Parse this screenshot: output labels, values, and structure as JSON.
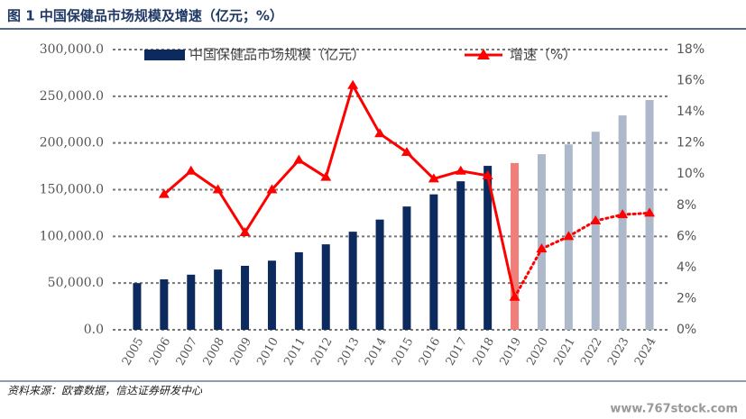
{
  "chart_data": {
    "type": "bar_line",
    "title": "图 1 中国保健品市场规模及增速（亿元；%）",
    "source": "资料来源：欧睿数据，信达证券研发中心",
    "watermark": "www.767stock.com",
    "categories": [
      "2005",
      "2006",
      "2007",
      "2008",
      "2009",
      "2010",
      "2011",
      "2012",
      "2013",
      "2014",
      "2015",
      "2016",
      "2017",
      "2018",
      "2019",
      "2020",
      "2021",
      "2022",
      "2023",
      "2024"
    ],
    "series": [
      {
        "name": "中国保健品市场规模（亿元）",
        "type": "bar",
        "color": "#0d2a5e",
        "colors": [
          "#0d2a5e",
          "#0d2a5e",
          "#0d2a5e",
          "#0d2a5e",
          "#0d2a5e",
          "#0d2a5e",
          "#0d2a5e",
          "#0d2a5e",
          "#0d2a5e",
          "#0d2a5e",
          "#0d2a5e",
          "#0d2a5e",
          "#0d2a5e",
          "#0d2a5e",
          "#f07f7a",
          "#adb9ca",
          "#adb9ca",
          "#adb9ca",
          "#adb9ca",
          "#adb9ca"
        ],
        "values": [
          50000,
          54000,
          59000,
          64500,
          68500,
          74000,
          83000,
          91500,
          105000,
          118000,
          132000,
          145000,
          159000,
          175500,
          178500,
          188000,
          198500,
          212000,
          229500,
          246000
        ]
      },
      {
        "name": "增速（%）",
        "type": "line",
        "axis": "y2",
        "color": "#ff0000",
        "line_styles": [
          "solid",
          "solid",
          "solid",
          "solid",
          "solid",
          "solid",
          "solid",
          "solid",
          "solid",
          "solid",
          "solid",
          "solid",
          "solid",
          "solid",
          "solid",
          "dotted",
          "dotted",
          "dotted",
          "dotted",
          "dotted"
        ],
        "values": [
          null,
          8.7,
          10.2,
          9.0,
          6.25,
          9.0,
          10.9,
          9.8,
          15.7,
          12.6,
          11.4,
          9.7,
          10.2,
          9.9,
          2.1,
          5.2,
          6.0,
          7.0,
          7.4,
          7.5
        ]
      }
    ],
    "ylim": [
      0,
      300000
    ],
    "yticks": [
      {
        "value": 0,
        "label": "0.0"
      },
      {
        "value": 50000,
        "label": "50,000.0"
      },
      {
        "value": 100000,
        "label": "100,000.0"
      },
      {
        "value": 150000,
        "label": "150,000.0"
      },
      {
        "value": 200000,
        "label": "200,000.0"
      },
      {
        "value": 250000,
        "label": "250,000.0"
      },
      {
        "value": 300000,
        "label": "300,000.0"
      }
    ],
    "y2lim": [
      0,
      18
    ],
    "y2ticks": [
      {
        "value": 0,
        "label": "0%"
      },
      {
        "value": 2,
        "label": "2%"
      },
      {
        "value": 4,
        "label": "4%"
      },
      {
        "value": 6,
        "label": "6%"
      },
      {
        "value": 8,
        "label": "8%"
      },
      {
        "value": 10,
        "label": "10%"
      },
      {
        "value": 12,
        "label": "12%"
      },
      {
        "value": 14,
        "label": "14%"
      },
      {
        "value": 16,
        "label": "16%"
      },
      {
        "value": 18,
        "label": "18%"
      }
    ],
    "grid": true
  }
}
